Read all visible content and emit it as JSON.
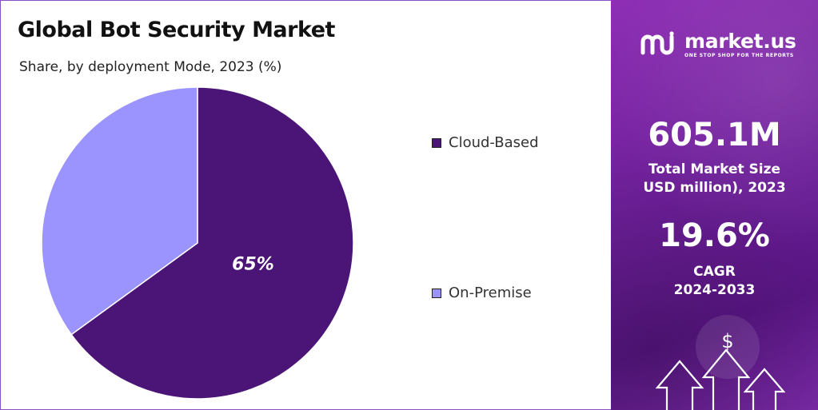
{
  "chart_data": {
    "type": "pie",
    "title": "Global Bot Security Market",
    "subtitle": "Share, by deployment Mode, 2023 (%)",
    "categories": [
      "Cloud-Based",
      "On-Premise"
    ],
    "values": [
      65,
      35
    ],
    "colors": [
      "#4a1577",
      "#9b93fe"
    ],
    "data_labels": [
      "65%",
      ""
    ],
    "legend_placement": "right"
  },
  "panel": {
    "brand_name": "market.us",
    "brand_tagline": "ONE STOP SHOP FOR THE REPORTS",
    "stats": [
      {
        "value": "605.1M",
        "label_lines": [
          "Total Market Size",
          "USD million), 2023"
        ]
      },
      {
        "value": "19.6%",
        "label_lines": [
          "CAGR",
          "2024-2033"
        ]
      }
    ],
    "symbol": "$",
    "background_color": "#6e1f9a"
  }
}
